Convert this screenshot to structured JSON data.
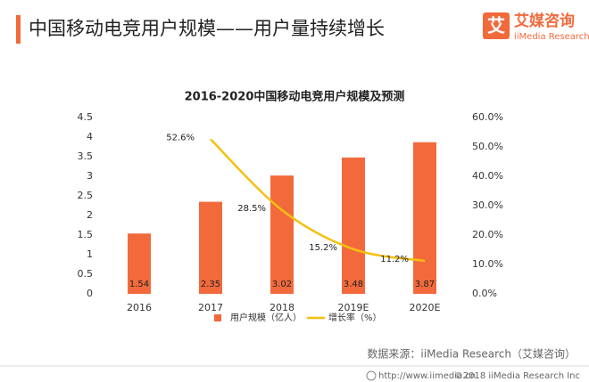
{
  "header": {
    "title": "中国移动电竞用户规模——用户量持续增长",
    "logo": "艾媒咨询",
    "logo_sub": "iiMedia Research",
    "logo_icon": "艾"
  },
  "chart_data": {
    "type": "bar",
    "title": "2016-2020中国移动电竞用户规模及预测",
    "categories": [
      "2016",
      "2017",
      "2018",
      "2019E",
      "2020E"
    ],
    "series": [
      {
        "name": "用户规模（亿人）",
        "type": "bar",
        "color": "#f26a3c",
        "values": [
          1.54,
          2.35,
          3.02,
          3.48,
          3.87
        ]
      },
      {
        "name": "增长率（%）",
        "type": "line",
        "axis": "y2",
        "color": "#f5c010",
        "values": [
          null,
          52.6,
          28.5,
          15.2,
          11.2
        ],
        "value_labels": [
          null,
          "52.6%",
          "28.5%",
          "15.2%",
          "11.2%"
        ]
      }
    ],
    "ylim": [
      0,
      4.5
    ],
    "yticks": [
      0,
      0.5,
      1,
      1.5,
      2,
      2.5,
      3,
      3.5,
      4,
      4.5
    ],
    "y2lim": [
      0,
      60
    ],
    "y2ticks": [
      {
        "value": 0,
        "label": "0.0%"
      },
      {
        "value": 10,
        "label": "10.0%"
      },
      {
        "value": 20,
        "label": "20.0%"
      },
      {
        "value": 30,
        "label": "30.0%"
      },
      {
        "value": 40,
        "label": "40.0%"
      },
      {
        "value": 50,
        "label": "50.0%"
      },
      {
        "value": 60,
        "label": "60.0%"
      }
    ],
    "grid": false,
    "legend": "bottom",
    "source": "数据来源：iiMedia Research（艾媒咨询）"
  },
  "footer": {
    "url": "http://www.iimedia.cn",
    "copyright": "©2018  iiMedia Research  Inc"
  }
}
